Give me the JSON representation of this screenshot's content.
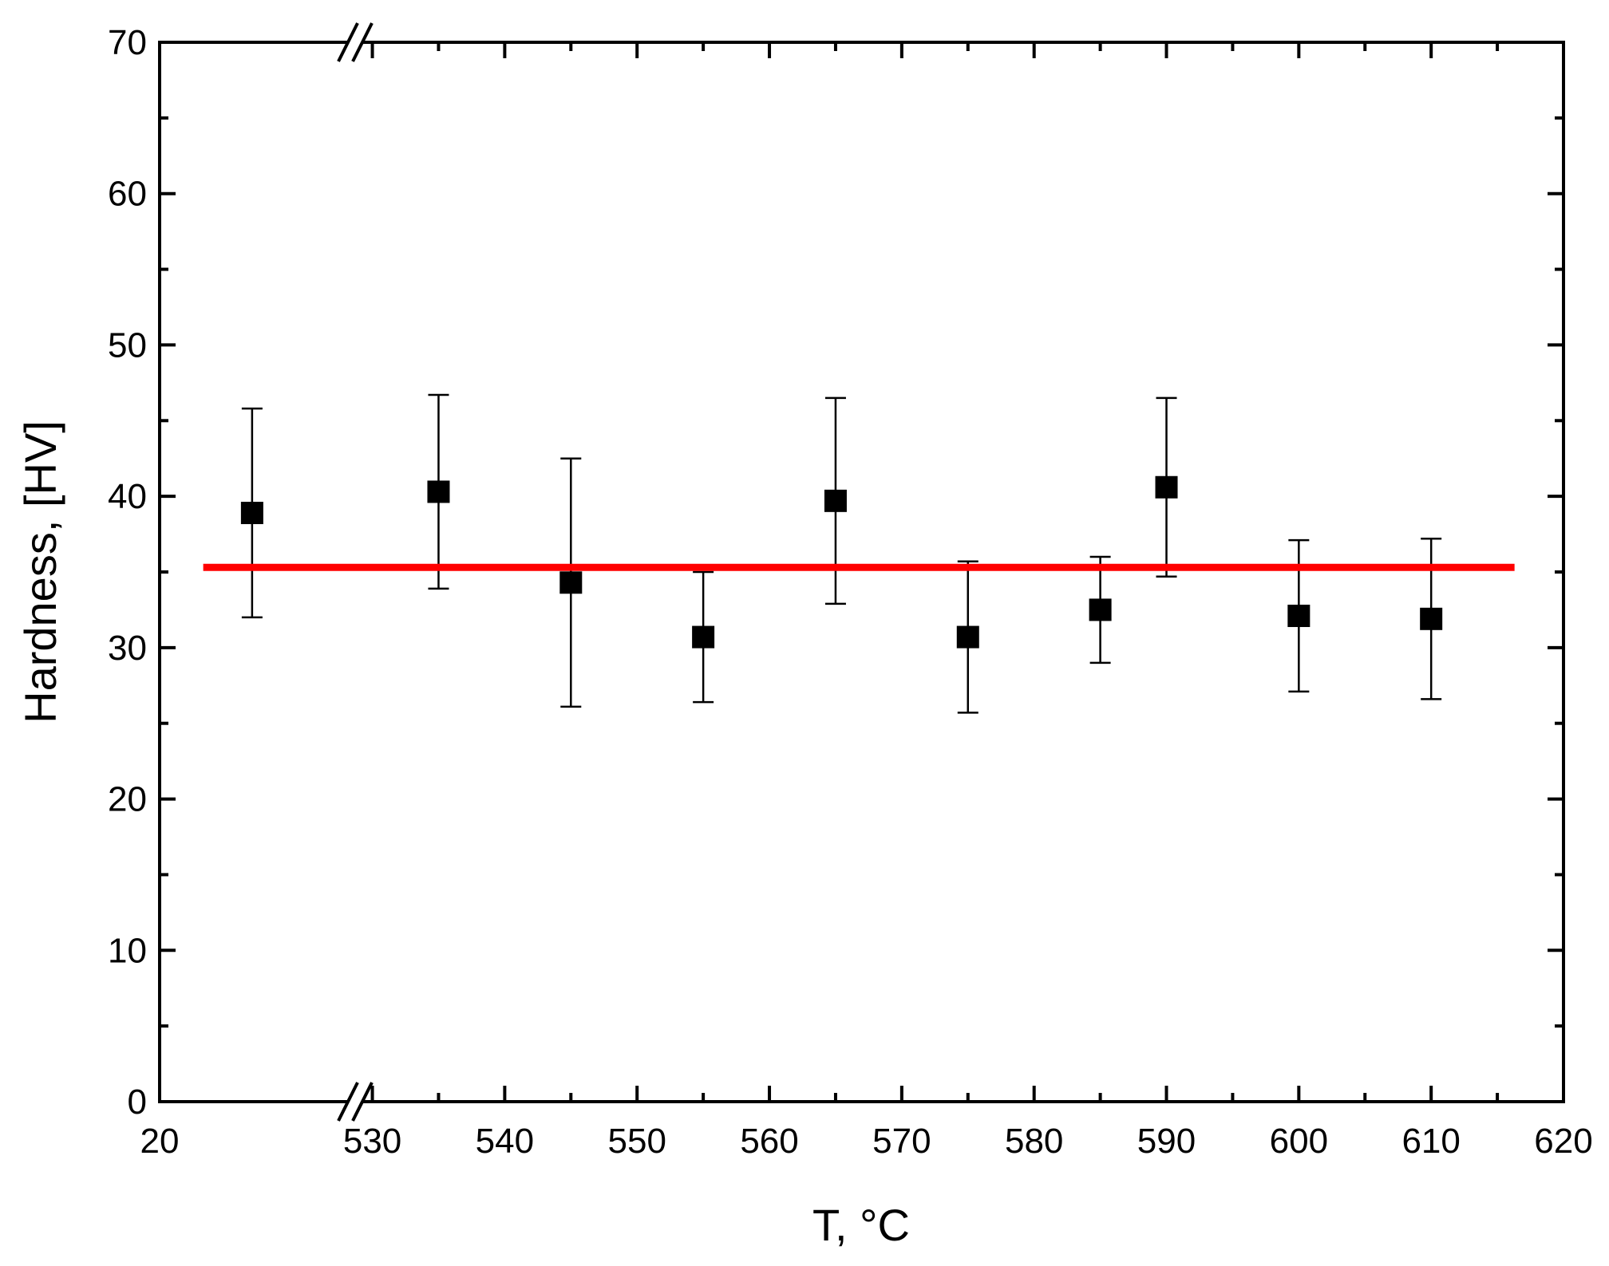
{
  "chart_data": {
    "type": "scatter",
    "x_label": "T, °C",
    "y_label": "Hardness, [HV]",
    "xlim": [
      20,
      620
    ],
    "xbreak": [
      34.8,
      528.7
    ],
    "xticks": [
      20,
      530,
      540,
      550,
      560,
      570,
      580,
      590,
      600,
      610,
      620
    ],
    "xminor": [
      535,
      545,
      555,
      565,
      575,
      585,
      595,
      605,
      615
    ],
    "ylim": [
      0,
      70
    ],
    "yticks": [
      0,
      10,
      20,
      30,
      40,
      50,
      60,
      70
    ],
    "yminor": [
      5,
      15,
      25,
      35,
      45,
      55,
      65
    ],
    "series": [
      {
        "color": "#000000",
        "x": [
          27,
          535,
          545,
          555,
          565,
          575,
          585,
          590,
          600,
          610
        ],
        "values": [
          38.9,
          40.3,
          34.3,
          30.7,
          39.7,
          30.7,
          32.5,
          40.6,
          32.1,
          31.9
        ],
        "errors": [
          6.9,
          6.4,
          8.2,
          4.3,
          6.8,
          5.0,
          3.5,
          5.9,
          5.0,
          5.3
        ]
      },
      {
        "type": "line",
        "color": "#ff0000",
        "x": [
          23.3,
          616.3
        ],
        "values": [
          35.3,
          35.3
        ]
      }
    ]
  }
}
